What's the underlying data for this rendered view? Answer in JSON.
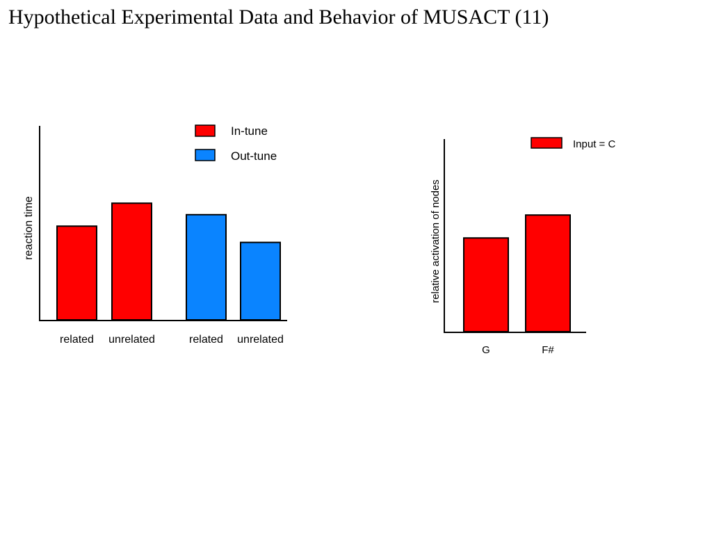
{
  "page": {
    "title": "Hypothetical Experimental Data and Behavior of MUSACT (11)"
  },
  "chart_data": [
    {
      "type": "bar",
      "title": "",
      "xlabel": "",
      "ylabel": "reaction time",
      "ylim": [
        0,
        100
      ],
      "categories": [
        "related",
        "unrelated",
        "related",
        "unrelated"
      ],
      "values": [
        49,
        61,
        55,
        40.5
      ],
      "bar_series": [
        "In-tune",
        "In-tune",
        "Out-tune",
        "Out-tune"
      ],
      "series": [
        {
          "name": "In-tune",
          "color": "#ff0000"
        },
        {
          "name": "Out-tune",
          "color": "#0a84ff"
        }
      ],
      "legend": "top-right",
      "grid": false
    },
    {
      "type": "bar",
      "title": "",
      "xlabel": "",
      "ylabel": "relative activation of nodes",
      "ylim": [
        0,
        100
      ],
      "categories": [
        "G",
        "F#"
      ],
      "values": [
        49,
        61
      ],
      "bar_series": [
        "Input = C",
        "Input = C"
      ],
      "series": [
        {
          "name": "Input = C",
          "color": "#ff0000"
        }
      ],
      "legend": "top-right",
      "grid": false
    }
  ]
}
